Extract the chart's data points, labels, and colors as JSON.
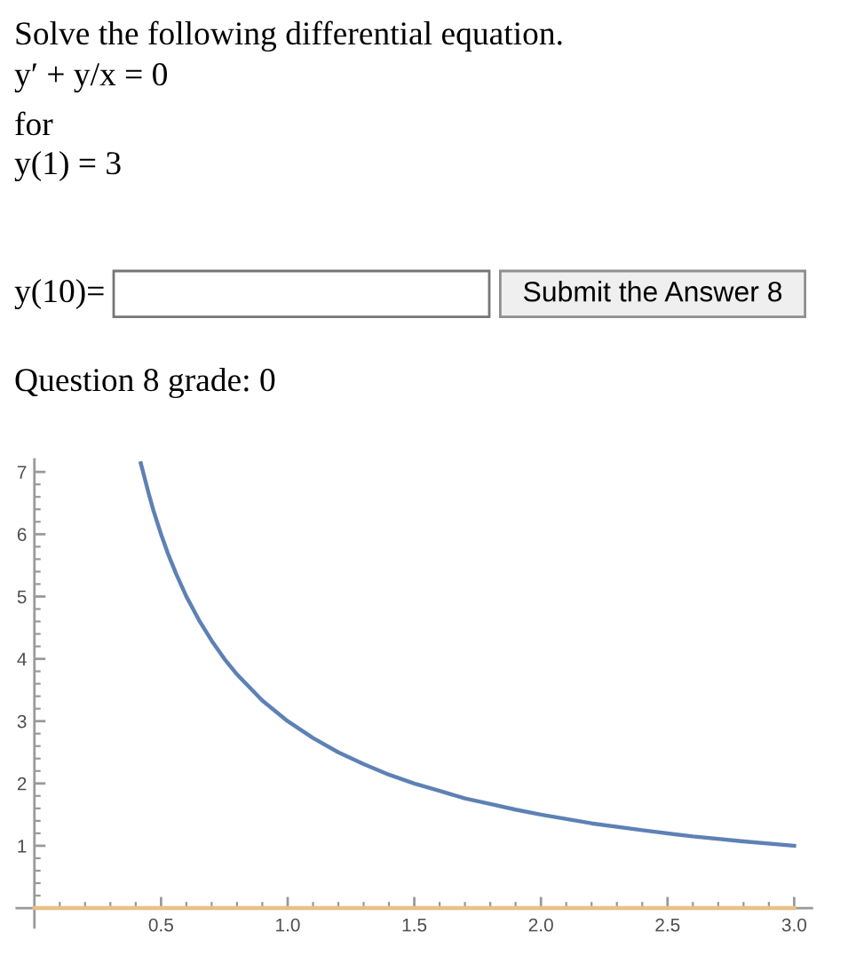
{
  "chart_data": {
    "type": "line",
    "title": "Solve the following differential equation.",
    "annotations": [
      "y′ + y/x = 0",
      "for",
      "y(1) = 3",
      "y(10)=",
      "Submit the Answer 8",
      "Question 8 grade: 0"
    ],
    "series": [
      {
        "color": "#5e81b5",
        "x": [
          0.42,
          0.45,
          0.47,
          0.5,
          0.53,
          0.56,
          0.6,
          0.65,
          0.7,
          0.75,
          0.8,
          0.9,
          1.0,
          1.1,
          1.2,
          1.3,
          1.4,
          1.5,
          1.6,
          1.7,
          1.8,
          1.9,
          2.0,
          2.2,
          2.4,
          2.6,
          2.8,
          3.0
        ],
        "values": [
          7.14,
          6.67,
          6.38,
          6.0,
          5.66,
          5.36,
          5.0,
          4.62,
          4.29,
          4.0,
          3.75,
          3.33,
          3.0,
          2.73,
          2.5,
          2.31,
          2.14,
          2.0,
          1.88,
          1.76,
          1.67,
          1.58,
          1.5,
          1.36,
          1.25,
          1.15,
          1.07,
          1.0
        ]
      },
      {
        "color": "#e9c086",
        "x": [
          0,
          3.0
        ],
        "values": [
          0,
          0
        ]
      }
    ],
    "xlim": [
      -0.07,
      3.07
    ],
    "ylim": [
      -0.31,
      7.2
    ],
    "xticks": [
      {
        "value": 0.1,
        "label": null
      },
      {
        "value": 0.2,
        "label": null
      },
      {
        "value": 0.3,
        "label": null
      },
      {
        "value": 0.4,
        "label": null
      },
      {
        "value": 0.5,
        "label": "0.5"
      },
      {
        "value": 0.6,
        "label": null
      },
      {
        "value": 0.7,
        "label": null
      },
      {
        "value": 0.8,
        "label": null
      },
      {
        "value": 0.9,
        "label": null
      },
      {
        "value": 1,
        "label": "1.0"
      },
      {
        "value": 1.1,
        "label": null
      },
      {
        "value": 1.2,
        "label": null
      },
      {
        "value": 1.3,
        "label": null
      },
      {
        "value": 1.4,
        "label": null
      },
      {
        "value": 1.5,
        "label": "1.5"
      },
      {
        "value": 1.6,
        "label": null
      },
      {
        "value": 1.7,
        "label": null
      },
      {
        "value": 1.8,
        "label": null
      },
      {
        "value": 1.9,
        "label": null
      },
      {
        "value": 2,
        "label": "2.0"
      },
      {
        "value": 2.1,
        "label": null
      },
      {
        "value": 2.2,
        "label": null
      },
      {
        "value": 2.3,
        "label": null
      },
      {
        "value": 2.4,
        "label": null
      },
      {
        "value": 2.5,
        "label": "2.5"
      },
      {
        "value": 2.6,
        "label": null
      },
      {
        "value": 2.7,
        "label": null
      },
      {
        "value": 2.8,
        "label": null
      },
      {
        "value": 2.9,
        "label": null
      },
      {
        "value": 3,
        "label": "3.0"
      }
    ],
    "yticks": [
      {
        "value": 0.2,
        "label": null
      },
      {
        "value": 0.4,
        "label": null
      },
      {
        "value": 0.6,
        "label": null
      },
      {
        "value": 0.8,
        "label": null
      },
      {
        "value": 1,
        "label": "1"
      },
      {
        "value": 1.2,
        "label": null
      },
      {
        "value": 1.4,
        "label": null
      },
      {
        "value": 1.6,
        "label": null
      },
      {
        "value": 1.8,
        "label": null
      },
      {
        "value": 2,
        "label": "2"
      },
      {
        "value": 2.2,
        "label": null
      },
      {
        "value": 2.4,
        "label": null
      },
      {
        "value": 2.6,
        "label": null
      },
      {
        "value": 2.8,
        "label": null
      },
      {
        "value": 3,
        "label": "3"
      },
      {
        "value": 3.2,
        "label": null
      },
      {
        "value": 3.4,
        "label": null
      },
      {
        "value": 3.6,
        "label": null
      },
      {
        "value": 3.8,
        "label": null
      },
      {
        "value": 4,
        "label": "4"
      },
      {
        "value": 4.2,
        "label": null
      },
      {
        "value": 4.4,
        "label": null
      },
      {
        "value": 4.6,
        "label": null
      },
      {
        "value": 4.8,
        "label": null
      },
      {
        "value": 5,
        "label": "5"
      },
      {
        "value": 5.2,
        "label": null
      },
      {
        "value": 5.4,
        "label": null
      },
      {
        "value": 5.6,
        "label": null
      },
      {
        "value": 5.8,
        "label": null
      },
      {
        "value": 6,
        "label": "6"
      },
      {
        "value": 6.2,
        "label": null
      },
      {
        "value": 6.4,
        "label": null
      },
      {
        "value": 6.6,
        "label": null
      },
      {
        "value": 6.8,
        "label": null
      },
      {
        "value": 7,
        "label": "7"
      }
    ]
  }
}
